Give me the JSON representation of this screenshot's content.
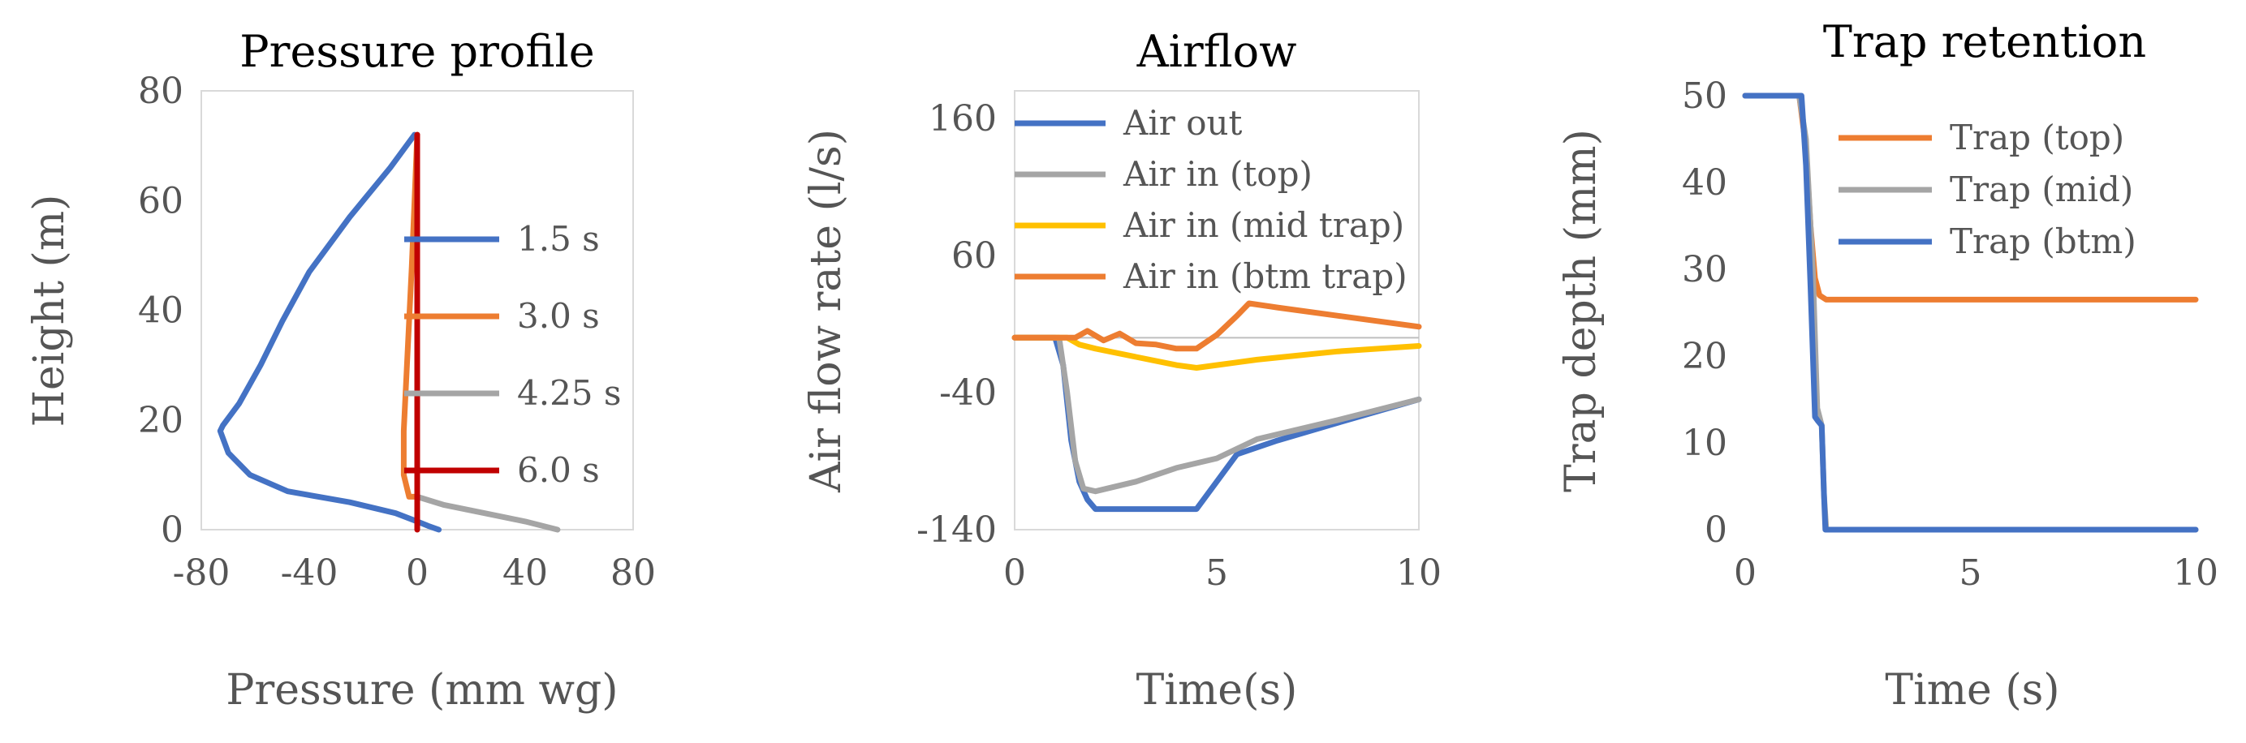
{
  "chart_data": [
    {
      "type": "line",
      "title": "Pressure profile",
      "xlabel": "Pressure (mm wg)",
      "ylabel": "Height (m)",
      "xlim": [
        -80,
        80
      ],
      "ylim": [
        0,
        80
      ],
      "xticks": [
        -80,
        -40,
        0,
        40,
        80
      ],
      "yticks": [
        0,
        20,
        40,
        60,
        80
      ],
      "legend_position": "right",
      "series": [
        {
          "name": "1.5 s",
          "color": "#4472c4",
          "points": [
            [
              -1,
              72
            ],
            [
              -10,
              66
            ],
            [
              -25,
              57
            ],
            [
              -40,
              47
            ],
            [
              -50,
              38
            ],
            [
              -58,
              30
            ],
            [
              -66,
              23
            ],
            [
              -72,
              19
            ],
            [
              -73,
              18
            ],
            [
              -70,
              14
            ],
            [
              -62,
              10
            ],
            [
              -48,
              7
            ],
            [
              -25,
              5
            ],
            [
              -8,
              3
            ],
            [
              0,
              1.5
            ],
            [
              4,
              0.7
            ],
            [
              8,
              0
            ]
          ]
        },
        {
          "name": "3.0 s",
          "color": "#ed7d31",
          "points": [
            [
              0,
              72
            ],
            [
              -1,
              60
            ],
            [
              -2,
              48
            ],
            [
              -3,
              38
            ],
            [
              -4,
              28
            ],
            [
              -5,
              18
            ],
            [
              -5,
              10
            ],
            [
              -3,
              6
            ],
            [
              0,
              6
            ]
          ]
        },
        {
          "name": "4.25 s",
          "color": "#a5a5a5",
          "points": [
            [
              0,
              72
            ],
            [
              0,
              40
            ],
            [
              0,
              6
            ],
            [
              10,
              4.5
            ],
            [
              25,
              3
            ],
            [
              40,
              1.5
            ],
            [
              52,
              0
            ]
          ]
        },
        {
          "name": "6.0 s",
          "color": "#c00000",
          "points": [
            [
              0,
              72
            ],
            [
              0,
              0
            ]
          ]
        }
      ]
    },
    {
      "type": "line",
      "title": "Airflow",
      "xlabel": "Time(s)",
      "ylabel": "Air flow rate (l/s)",
      "xlim": [
        0,
        10
      ],
      "ylim": [
        -140,
        180
      ],
      "xticks": [
        0,
        5,
        10
      ],
      "yticks": [
        -140,
        -40,
        60,
        160
      ],
      "legend_position": "top",
      "series": [
        {
          "name": "Air out",
          "color": "#4472c4",
          "points": [
            [
              0,
              0
            ],
            [
              1,
              0
            ],
            [
              1.2,
              -20
            ],
            [
              1.4,
              -75
            ],
            [
              1.6,
              -105
            ],
            [
              1.8,
              -118
            ],
            [
              2,
              -125
            ],
            [
              4.5,
              -125
            ],
            [
              5,
              -105
            ],
            [
              5.5,
              -85
            ],
            [
              6.5,
              -75
            ],
            [
              8,
              -62
            ],
            [
              10,
              -45
            ]
          ]
        },
        {
          "name": "Air in (top)",
          "color": "#a5a5a5",
          "points": [
            [
              0,
              0
            ],
            [
              1.1,
              0
            ],
            [
              1.3,
              -40
            ],
            [
              1.5,
              -90
            ],
            [
              1.7,
              -110
            ],
            [
              2,
              -112
            ],
            [
              3,
              -105
            ],
            [
              4,
              -95
            ],
            [
              5,
              -88
            ],
            [
              6,
              -74
            ],
            [
              8,
              -60
            ],
            [
              10,
              -45
            ]
          ]
        },
        {
          "name": "Air in (mid trap)",
          "color": "#ffc000",
          "points": [
            [
              0,
              0
            ],
            [
              1.3,
              0
            ],
            [
              1.6,
              -5
            ],
            [
              2,
              -8
            ],
            [
              3,
              -14
            ],
            [
              4,
              -20
            ],
            [
              4.5,
              -22
            ],
            [
              5,
              -20
            ],
            [
              6,
              -16
            ],
            [
              8,
              -10
            ],
            [
              10,
              -6
            ]
          ]
        },
        {
          "name": "Air in (btm trap)",
          "color": "#ed7d31",
          "points": [
            [
              0,
              0
            ],
            [
              1.5,
              0
            ],
            [
              1.8,
              5
            ],
            [
              2.2,
              -2
            ],
            [
              2.6,
              3
            ],
            [
              3,
              -4
            ],
            [
              3.5,
              -5
            ],
            [
              4,
              -8
            ],
            [
              4.5,
              -8
            ],
            [
              5,
              2
            ],
            [
              5.5,
              16
            ],
            [
              5.8,
              25
            ],
            [
              6.5,
              22
            ],
            [
              8,
              16
            ],
            [
              10,
              8
            ]
          ]
        }
      ]
    },
    {
      "type": "line",
      "title": "Trap retention",
      "xlabel": "Time (s)",
      "ylabel": "Trap depth (mm)",
      "xlim": [
        0,
        10
      ],
      "ylim": [
        0,
        50
      ],
      "xticks": [
        0,
        5,
        10
      ],
      "yticks": [
        0,
        10,
        20,
        30,
        40,
        50
      ],
      "legend_position": "top-right",
      "series": [
        {
          "name": "Trap (top)",
          "color": "#ed7d31",
          "points": [
            [
              0,
              50
            ],
            [
              1.2,
              50
            ],
            [
              1.35,
              44
            ],
            [
              1.45,
              35
            ],
            [
              1.55,
              29
            ],
            [
              1.65,
              27
            ],
            [
              1.8,
              26.5
            ],
            [
              10,
              26.5
            ]
          ]
        },
        {
          "name": "Trap (mid)",
          "color": "#a5a5a5",
          "points": [
            [
              0,
              50
            ],
            [
              1.2,
              50
            ],
            [
              1.35,
              45
            ],
            [
              1.5,
              30
            ],
            [
              1.6,
              14
            ],
            [
              1.7,
              12
            ],
            [
              1.75,
              4
            ],
            [
              1.8,
              0
            ],
            [
              10,
              0
            ]
          ]
        },
        {
          "name": "Trap (btm)",
          "color": "#4472c4",
          "points": [
            [
              0,
              50
            ],
            [
              1.25,
              50
            ],
            [
              1.35,
              42
            ],
            [
              1.45,
              28
            ],
            [
              1.55,
              13
            ],
            [
              1.62,
              12.5
            ],
            [
              1.7,
              12
            ],
            [
              1.75,
              4
            ],
            [
              1.78,
              0
            ],
            [
              10,
              0
            ]
          ]
        }
      ]
    }
  ]
}
